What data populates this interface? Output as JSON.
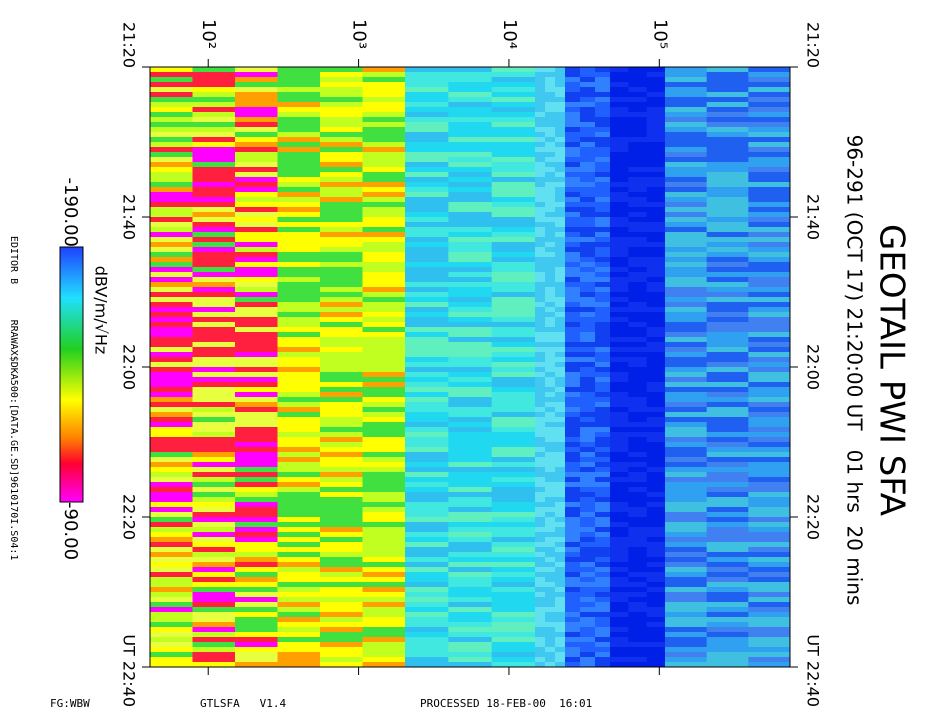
{
  "chart_data": {
    "type": "spectrogram",
    "title": "GEOTAIL PWI SFA",
    "subtitle": "96-291 (OCT 17) 21:20:00 UT   01 hrs  20 mins",
    "xscale": "log",
    "xlim": [
      41,
      740000
    ],
    "xticks": [
      {
        "value": 100,
        "label": "10²"
      },
      {
        "value": 1000,
        "label": "10³"
      },
      {
        "value": 10000,
        "label": "10⁴"
      },
      {
        "value": 100000,
        "label": "10⁵"
      }
    ],
    "ylim": [
      "21:20",
      "22:40"
    ],
    "yticks": [
      "21:20",
      "21:40",
      "22:00",
      "22:20",
      {
        "value": "22:40",
        "label": "UT 22:40"
      }
    ],
    "colorbar": {
      "ticks": [
        {
          "value": -190,
          "label": "-190.00"
        },
        {
          "value": -90,
          "label": "-90.00"
        }
      ],
      "unit": "dBV/m/√Hz"
    },
    "notes": {
      "editor": "EDITOR B",
      "file": "RRAWAX$DKA500:[DATA.GE.SD]9610170I.S04:1",
      "mode": "FG:WBW",
      "program": "GTLSFA   V1.4",
      "processed": "PROCESSED 18-FEB-00  16:01"
    }
  }
}
